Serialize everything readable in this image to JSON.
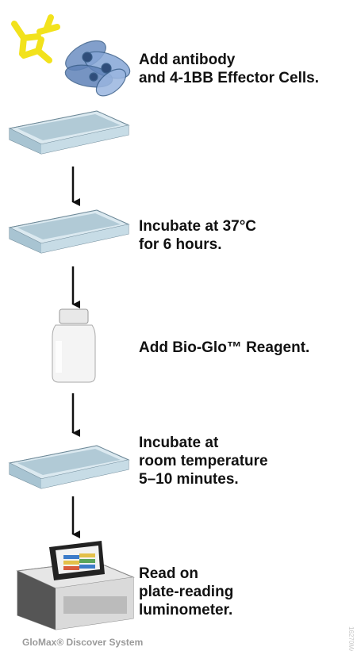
{
  "steps": [
    {
      "lines": [
        "Add antibody",
        "and 4-1BB Effector Cells."
      ]
    },
    {
      "lines": [
        "Incubate at 37°C",
        "for 6 hours."
      ]
    },
    {
      "lines": [
        "Add Bio-Glo™ Reagent."
      ]
    },
    {
      "lines": [
        "Incubate at",
        "room temperature",
        "5–10 minutes."
      ]
    },
    {
      "lines": [
        "Read on",
        "plate-reading",
        "luminometer."
      ]
    }
  ],
  "caption": "GloMax® Discover System",
  "code": "16270MA"
}
